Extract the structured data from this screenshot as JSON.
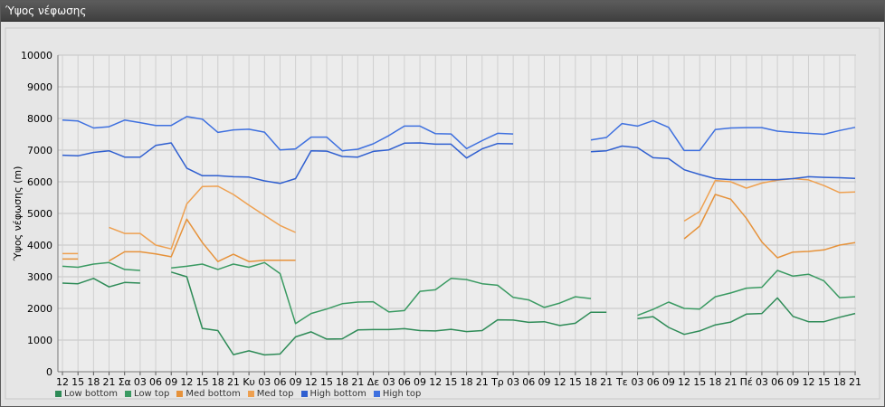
{
  "window": {
    "title": "Ύψος νέφωσης"
  },
  "chart_data": {
    "type": "line",
    "title": "",
    "ylabel": "Ύψος νέφωσης (m)",
    "xlabel": "",
    "ylim": [
      0,
      10000
    ],
    "yticks": [
      0,
      1000,
      2000,
      3000,
      4000,
      5000,
      6000,
      7000,
      8000,
      9000,
      10000
    ],
    "categories": [
      "12",
      "15",
      "18",
      "21",
      "Σα",
      "03",
      "06",
      "09",
      "12",
      "15",
      "18",
      "21",
      "Κυ",
      "03",
      "06",
      "09",
      "12",
      "15",
      "18",
      "21",
      "Δε",
      "03",
      "06",
      "09",
      "12",
      "15",
      "18",
      "21",
      "Τρ",
      "03",
      "06",
      "09",
      "12",
      "15",
      "18",
      "21",
      "Τε",
      "03",
      "06",
      "09",
      "12",
      "15",
      "18",
      "21",
      "Πέ",
      "03",
      "06",
      "09",
      "12",
      "15",
      "18",
      "21"
    ],
    "legend_position": "bottom-left",
    "grid": true,
    "series": [
      {
        "name": "Low bottom",
        "color": "#2e8b57",
        "values": [
          2800,
          2780,
          2950,
          2680,
          2820,
          2800,
          null,
          3150,
          3000,
          1370,
          1300,
          540,
          660,
          530,
          560,
          1100,
          1260,
          1030,
          1040,
          1320,
          1330,
          1330,
          1360,
          1300,
          1290,
          1340,
          1270,
          1300,
          1640,
          1630,
          1560,
          1580,
          1460,
          1530,
          1880,
          1880,
          null,
          1680,
          1740,
          1400,
          1180,
          1290,
          1480,
          1570,
          1820,
          1840,
          2330,
          1750,
          1580,
          1580,
          1720,
          1840
        ]
      },
      {
        "name": "Low top",
        "color": "#3a9a62",
        "values": [
          3330,
          3300,
          3400,
          3450,
          3230,
          3200,
          null,
          3280,
          3330,
          3400,
          3230,
          3400,
          3300,
          3450,
          3100,
          1520,
          1840,
          1980,
          2150,
          2200,
          2210,
          1890,
          1930,
          2540,
          2590,
          2950,
          2910,
          2780,
          2730,
          2350,
          2270,
          2030,
          2170,
          2370,
          2310,
          null,
          null,
          1780,
          1970,
          2200,
          2000,
          1980,
          2370,
          2490,
          2640,
          2670,
          3200,
          3020,
          3080,
          2870,
          2340,
          2370
        ]
      },
      {
        "name": "Med bottom",
        "color": "#e6923a",
        "values": [
          3560,
          3560,
          null,
          3500,
          3790,
          3790,
          3720,
          3630,
          4820,
          4080,
          3480,
          3710,
          3480,
          3520,
          3520,
          3520,
          null,
          null,
          null,
          null,
          null,
          null,
          null,
          null,
          null,
          null,
          null,
          null,
          null,
          null,
          null,
          null,
          null,
          null,
          null,
          null,
          null,
          null,
          null,
          null,
          4200,
          4600,
          5600,
          5450,
          4850,
          4100,
          3600,
          3780,
          3800,
          3850,
          4000,
          4080
        ]
      },
      {
        "name": "Med top",
        "color": "#eea050",
        "values": [
          3730,
          3730,
          null,
          4560,
          4370,
          4370,
          4000,
          3880,
          5300,
          5850,
          5860,
          5600,
          5260,
          4940,
          4620,
          4400,
          null,
          null,
          null,
          null,
          null,
          null,
          null,
          null,
          null,
          null,
          null,
          null,
          null,
          null,
          null,
          null,
          null,
          null,
          null,
          null,
          null,
          null,
          null,
          null,
          4760,
          5060,
          6040,
          6000,
          5800,
          5960,
          6050,
          6100,
          6060,
          5880,
          5660,
          5680
        ]
      },
      {
        "name": "High bottom",
        "color": "#2f5fd0",
        "values": [
          6840,
          6820,
          6930,
          6980,
          6780,
          6780,
          7150,
          7230,
          6430,
          6190,
          6190,
          6160,
          6150,
          6030,
          5950,
          6100,
          6980,
          6970,
          6800,
          6780,
          6960,
          7010,
          7220,
          7230,
          7190,
          7190,
          6750,
          7040,
          7210,
          7200,
          null,
          null,
          null,
          null,
          6950,
          6980,
          7130,
          7080,
          6760,
          6730,
          6380,
          6230,
          6100,
          6070,
          6070,
          6070,
          6070,
          6100,
          6160,
          6140,
          6130,
          6110
        ]
      },
      {
        "name": "High top",
        "color": "#3e70df",
        "values": [
          7950,
          7920,
          7700,
          7740,
          7950,
          7870,
          7780,
          7780,
          8060,
          7980,
          7560,
          7640,
          7660,
          7570,
          7010,
          7040,
          7410,
          7410,
          6980,
          7030,
          7200,
          7460,
          7760,
          7760,
          7520,
          7510,
          7050,
          7300,
          7530,
          7510,
          null,
          null,
          null,
          null,
          7320,
          7400,
          7840,
          7760,
          7930,
          7720,
          6990,
          6990,
          7650,
          7700,
          7710,
          7710,
          7600,
          7560,
          7530,
          7500,
          7620,
          7720
        ]
      }
    ]
  }
}
